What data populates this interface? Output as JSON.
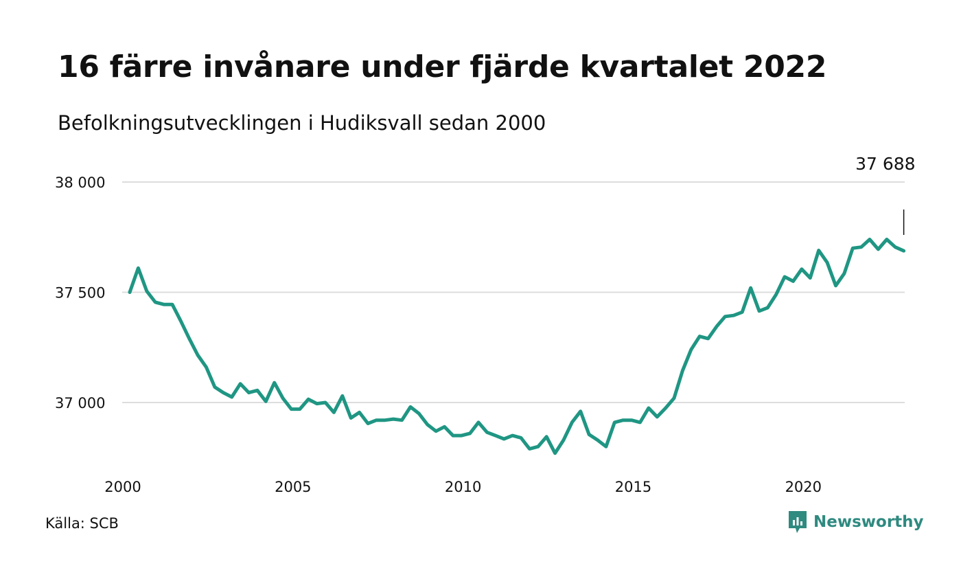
{
  "title": "16 färre invånare under fjärde kvartalet 2022",
  "subtitle": "Befolkningsutvecklingen i Hudiksvall sedan 2000",
  "source": "Källa: SCB",
  "brand": {
    "name": "Newsworthy",
    "icon": "newsworthy-logo-icon"
  },
  "colors": {
    "line": "#1f9683",
    "grid": "#dddddd",
    "text": "#111111",
    "brand": "#2f8a80"
  },
  "chart_data": {
    "type": "line",
    "x_start": 2000.0,
    "x_step": 0.25,
    "ylim": [
      36700,
      38000
    ],
    "xlim": [
      2000,
      2023
    ],
    "y_ticks": [
      37000,
      37500,
      38000
    ],
    "y_tick_labels": [
      "37 000",
      "37 500",
      "38 000"
    ],
    "x_ticks": [
      2000,
      2005,
      2010,
      2015,
      2020
    ],
    "x_tick_labels": [
      "2000",
      "2005",
      "2010",
      "2015",
      "2020"
    ],
    "grid": true,
    "annotation": {
      "label": "37 688",
      "value": 37688
    },
    "values": [
      37500,
      37610,
      37505,
      37455,
      37445,
      37445,
      37370,
      37290,
      37215,
      37160,
      37070,
      37045,
      37025,
      37085,
      37045,
      37055,
      37005,
      37090,
      37020,
      36970,
      36970,
      37015,
      36995,
      37000,
      36955,
      37030,
      36930,
      36955,
      36905,
      36920,
      36920,
      36925,
      36920,
      36980,
      36950,
      36900,
      36870,
      36890,
      36850,
      36850,
      36860,
      36910,
      36865,
      36850,
      36835,
      36850,
      36840,
      36790,
      36800,
      36845,
      36770,
      36830,
      36910,
      36960,
      36855,
      36830,
      36800,
      36910,
      36920,
      36920,
      36910,
      36975,
      36935,
      36975,
      37020,
      37145,
      37240,
      37300,
      37290,
      37345,
      37390,
      37395,
      37410,
      37520,
      37415,
      37430,
      37490,
      37570,
      37550,
      37605,
      37565,
      37690,
      37635,
      37530,
      37585,
      37700,
      37705,
      37740,
      37695,
      37740,
      37705,
      37688
    ]
  }
}
